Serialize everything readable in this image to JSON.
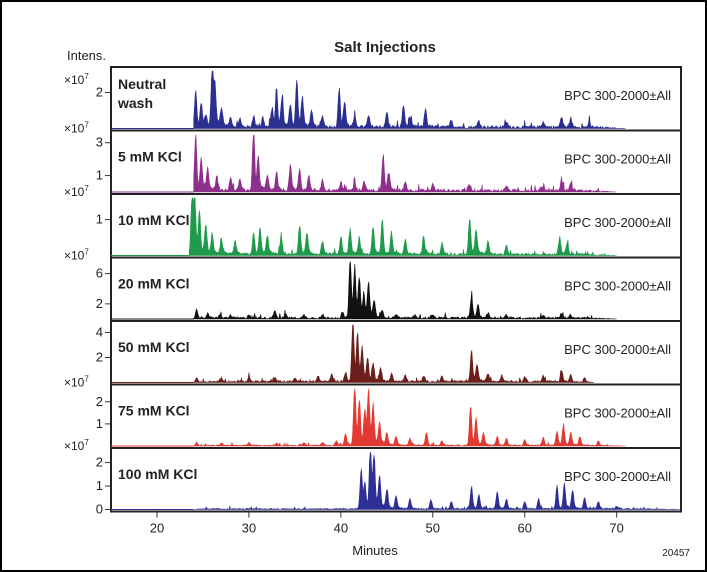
{
  "chart_data": {
    "type": "line",
    "title": "Salt Injections",
    "y_units_label": "Intens.",
    "xlabel": "Minutes",
    "figure_id": "20457",
    "xlim": [
      15,
      77
    ],
    "x_ticks": [
      20,
      30,
      40,
      50,
      60,
      70
    ],
    "x_tick_labels": [
      "20",
      "30",
      "40",
      "50",
      "60",
      "70"
    ],
    "trace_label": "BPC 300-2000±All",
    "exponent_label": "×10",
    "exponent_power": "7",
    "panels": [
      {
        "name_lines": [
          "Neutral",
          "wash"
        ],
        "color": "#2b2f8f",
        "ylim": [
          0,
          3.2
        ],
        "y_ticks": [
          2
        ],
        "y_tick_labels": [
          "2"
        ],
        "exponent": true,
        "baseline_start": 24,
        "baseline_end": 71,
        "peaks": [
          [
            24.2,
            2.0
          ],
          [
            24.8,
            1.3
          ],
          [
            25.3,
            0.6
          ],
          [
            26.0,
            3.2
          ],
          [
            26.3,
            2.0
          ],
          [
            27.0,
            0.9
          ],
          [
            28.0,
            0.5
          ],
          [
            29.0,
            0.45
          ],
          [
            30.5,
            0.6
          ],
          [
            31.5,
            0.5
          ],
          [
            32.5,
            1.0
          ],
          [
            33.0,
            1.9
          ],
          [
            33.6,
            1.6
          ],
          [
            34.5,
            1.2
          ],
          [
            35.2,
            2.5
          ],
          [
            35.8,
            1.5
          ],
          [
            36.8,
            0.8
          ],
          [
            38.0,
            0.6
          ],
          [
            39.8,
            2.0
          ],
          [
            40.4,
            1.3
          ],
          [
            41.5,
            0.5
          ],
          [
            43.0,
            0.6
          ],
          [
            45.0,
            0.8
          ],
          [
            46.8,
            1.2
          ],
          [
            47.5,
            0.5
          ],
          [
            49.2,
            1.0
          ],
          [
            52.0,
            0.4
          ],
          [
            55.0,
            0.35
          ],
          [
            58.0,
            0.3
          ],
          [
            62.0,
            0.3
          ],
          [
            64.0,
            0.55
          ],
          [
            65.0,
            0.45
          ],
          [
            67.0,
            0.25
          ]
        ],
        "noise": 0.3
      },
      {
        "name_lines": [
          "5 mM KCl"
        ],
        "color": "#8e2f8c",
        "ylim": [
          0,
          3.5
        ],
        "y_ticks": [
          1,
          3
        ],
        "y_tick_labels": [
          "1",
          "3"
        ],
        "exponent": true,
        "baseline_start": 24,
        "baseline_end": 70,
        "peaks": [
          [
            24.2,
            3.3
          ],
          [
            24.8,
            1.8
          ],
          [
            25.5,
            1.2
          ],
          [
            26.5,
            0.9
          ],
          [
            28.0,
            0.8
          ],
          [
            29.0,
            0.6
          ],
          [
            30.5,
            3.4
          ],
          [
            31.0,
            1.8
          ],
          [
            32.0,
            0.8
          ],
          [
            33.0,
            1.0
          ],
          [
            34.5,
            1.5
          ],
          [
            35.5,
            1.2
          ],
          [
            36.5,
            0.8
          ],
          [
            38.0,
            0.6
          ],
          [
            40.0,
            0.5
          ],
          [
            41.5,
            0.45
          ],
          [
            42.5,
            0.5
          ],
          [
            44.6,
            2.0
          ],
          [
            45.2,
            1.0
          ],
          [
            47.0,
            0.5
          ],
          [
            50.0,
            0.4
          ],
          [
            54.0,
            0.4
          ],
          [
            58.0,
            0.3
          ],
          [
            62.0,
            0.3
          ],
          [
            64.0,
            0.6
          ],
          [
            65.0,
            0.4
          ]
        ],
        "noise": 0.3
      },
      {
        "name_lines": [
          "10 mM KCl"
        ],
        "color": "#1f9a4a",
        "ylim": [
          0,
          1.6
        ],
        "y_ticks": [
          1
        ],
        "y_tick_labels": [
          "1"
        ],
        "exponent": true,
        "baseline_start": 23.5,
        "baseline_end": 70,
        "peaks": [
          [
            23.8,
            1.6
          ],
          [
            24.1,
            1.4
          ],
          [
            24.6,
            1.0
          ],
          [
            25.3,
            0.7
          ],
          [
            26.0,
            0.5
          ],
          [
            27.0,
            0.4
          ],
          [
            28.5,
            0.35
          ],
          [
            30.5,
            0.55
          ],
          [
            31.2,
            0.7
          ],
          [
            32.0,
            0.5
          ],
          [
            33.5,
            0.45
          ],
          [
            35.5,
            0.8
          ],
          [
            36.3,
            0.55
          ],
          [
            38.0,
            0.35
          ],
          [
            40.0,
            0.45
          ],
          [
            41.0,
            0.65
          ],
          [
            42.0,
            0.4
          ],
          [
            43.5,
            0.75
          ],
          [
            44.5,
            0.9
          ],
          [
            45.5,
            0.55
          ],
          [
            47.0,
            0.4
          ],
          [
            49.0,
            0.45
          ],
          [
            51.0,
            0.3
          ],
          [
            54.0,
            0.95
          ],
          [
            54.7,
            0.65
          ],
          [
            56.0,
            0.35
          ],
          [
            58.0,
            0.25
          ],
          [
            63.8,
            0.45
          ],
          [
            64.6,
            0.3
          ]
        ],
        "noise": 0.25
      },
      {
        "name_lines": [
          "20 mM KCl"
        ],
        "color": "#111111",
        "ylim": [
          0,
          7.6
        ],
        "y_ticks": [
          2,
          6
        ],
        "y_tick_labels": [
          "2",
          "6"
        ],
        "exponent": true,
        "baseline_start": 24,
        "baseline_end": 70,
        "peaks": [
          [
            24.3,
            1.2
          ],
          [
            25.5,
            0.5
          ],
          [
            26.8,
            0.4
          ],
          [
            28.0,
            0.3
          ],
          [
            30.0,
            0.45
          ],
          [
            32.8,
            1.0
          ],
          [
            34.0,
            0.45
          ],
          [
            36.0,
            0.4
          ],
          [
            38.0,
            0.4
          ],
          [
            40.2,
            0.6
          ],
          [
            41.0,
            7.4
          ],
          [
            41.5,
            6.0
          ],
          [
            42.0,
            4.8
          ],
          [
            42.5,
            2.5
          ],
          [
            43.0,
            4.2
          ],
          [
            43.6,
            2.0
          ],
          [
            44.5,
            0.8
          ],
          [
            46.0,
            0.5
          ],
          [
            48.0,
            0.4
          ],
          [
            50.0,
            0.4
          ],
          [
            54.2,
            2.8
          ],
          [
            54.9,
            1.6
          ],
          [
            56.0,
            0.6
          ],
          [
            58.0,
            0.4
          ],
          [
            62.0,
            0.35
          ],
          [
            64.0,
            0.6
          ],
          [
            65.0,
            0.4
          ]
        ],
        "noise": 0.22
      },
      {
        "name_lines": [
          "50 mM KCl"
        ],
        "color": "#6b1e1a",
        "ylim": [
          0,
          4.6
        ],
        "y_ticks": [
          2,
          4
        ],
        "y_tick_labels": [
          "2",
          "4"
        ],
        "exponent": false,
        "baseline_start": 24,
        "baseline_end": 67.5,
        "peaks": [
          [
            24.3,
            0.35
          ],
          [
            27.0,
            0.3
          ],
          [
            30.0,
            0.35
          ],
          [
            32.8,
            0.3
          ],
          [
            35.0,
            0.3
          ],
          [
            37.5,
            0.4
          ],
          [
            39.0,
            0.6
          ],
          [
            40.5,
            0.7
          ],
          [
            41.3,
            4.6
          ],
          [
            41.8,
            3.5
          ],
          [
            42.3,
            2.4
          ],
          [
            42.9,
            1.6
          ],
          [
            43.5,
            1.3
          ],
          [
            44.3,
            0.9
          ],
          [
            45.5,
            0.6
          ],
          [
            47.0,
            0.5
          ],
          [
            49.0,
            0.45
          ],
          [
            51.0,
            0.4
          ],
          [
            54.2,
            2.3
          ],
          [
            54.8,
            1.3
          ],
          [
            56.0,
            0.6
          ],
          [
            57.5,
            0.5
          ],
          [
            60.0,
            0.4
          ],
          [
            62.0,
            0.45
          ],
          [
            64.0,
            0.9
          ],
          [
            65.0,
            0.55
          ],
          [
            66.5,
            0.35
          ]
        ],
        "noise": 0.2
      },
      {
        "name_lines": [
          "75 mM KCl"
        ],
        "color": "#e23a32",
        "ylim": [
          0,
          2.6
        ],
        "y_ticks": [
          1,
          2
        ],
        "y_tick_labels": [
          "1",
          "2"
        ],
        "exponent": true,
        "baseline_start": 24,
        "baseline_end": 71,
        "peaks": [
          [
            24.3,
            0.15
          ],
          [
            27.0,
            0.1
          ],
          [
            30.0,
            0.12
          ],
          [
            33.0,
            0.1
          ],
          [
            36.0,
            0.12
          ],
          [
            38.0,
            0.15
          ],
          [
            39.5,
            0.2
          ],
          [
            40.5,
            0.5
          ],
          [
            41.5,
            2.6
          ],
          [
            42.0,
            1.9
          ],
          [
            42.6,
            1.4
          ],
          [
            43.0,
            2.3
          ],
          [
            43.5,
            1.6
          ],
          [
            44.2,
            0.9
          ],
          [
            45.0,
            0.5
          ],
          [
            46.0,
            0.4
          ],
          [
            47.5,
            0.3
          ],
          [
            49.3,
            0.55
          ],
          [
            51.0,
            0.2
          ],
          [
            54.1,
            1.7
          ],
          [
            54.7,
            1.1
          ],
          [
            55.5,
            0.5
          ],
          [
            57.0,
            0.4
          ],
          [
            58.0,
            0.3
          ],
          [
            60.0,
            0.25
          ],
          [
            62.0,
            0.35
          ],
          [
            63.5,
            0.6
          ],
          [
            64.2,
            0.85
          ],
          [
            65.0,
            0.55
          ],
          [
            66.0,
            0.35
          ],
          [
            68.0,
            0.2
          ]
        ],
        "noise": 0.12
      },
      {
        "name_lines": [
          "100 mM KCl"
        ],
        "color": "#2e2f95",
        "ylim": [
          0,
          2.45
        ],
        "y_ticks": [
          0,
          1,
          2
        ],
        "y_tick_labels": [
          "0",
          "1",
          "2"
        ],
        "exponent": true,
        "baseline_start": 24,
        "baseline_end": 77,
        "peaks": [
          [
            42.2,
            1.6
          ],
          [
            42.6,
            1.0
          ],
          [
            43.2,
            2.45
          ],
          [
            43.6,
            2.1
          ],
          [
            44.2,
            1.2
          ],
          [
            45.0,
            0.7
          ],
          [
            46.0,
            0.5
          ],
          [
            47.5,
            0.4
          ],
          [
            49.8,
            0.35
          ],
          [
            52.0,
            0.3
          ],
          [
            54.2,
            0.9
          ],
          [
            55.0,
            0.55
          ],
          [
            57.0,
            0.7
          ],
          [
            58.0,
            0.4
          ],
          [
            60.0,
            0.3
          ],
          [
            61.5,
            0.4
          ],
          [
            63.5,
            0.9
          ],
          [
            64.3,
            1.0
          ],
          [
            65.2,
            0.75
          ],
          [
            66.5,
            0.45
          ],
          [
            68.0,
            0.3
          ],
          [
            70.0,
            0.12
          ]
        ],
        "noise": 0.12
      }
    ]
  }
}
